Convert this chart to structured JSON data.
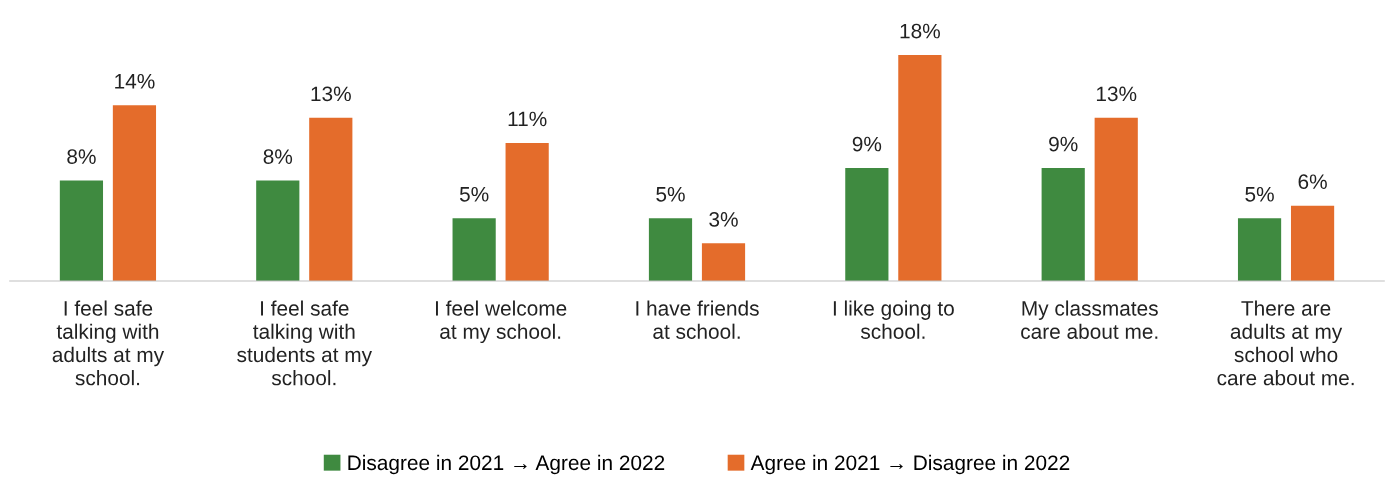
{
  "chart_data": {
    "type": "bar",
    "categories": [
      "I feel safe\ntalking with\nadults at my\nschool.",
      "I feel safe\ntalking with\nstudents at my\nschool.",
      "I feel welcome\nat my school.",
      "I have friends\nat school.",
      "I like going to\nschool.",
      "My classmates\ncare about me.",
      "There are\nadults at my\nschool who\ncare about me."
    ],
    "series": [
      {
        "name": "Disagree in 2021 → Agree in 2022",
        "color": "#3f8a40",
        "values": [
          8,
          8,
          5,
          5,
          9,
          9,
          5
        ],
        "value_labels": [
          "8%",
          "8%",
          "5%",
          "5%",
          "9%",
          "9%",
          "5%"
        ]
      },
      {
        "name": "Agree in 2021 → Disagree in 2022",
        "color": "#e46c2b",
        "values": [
          14,
          13,
          11,
          3,
          18,
          13,
          6
        ],
        "value_labels": [
          "14%",
          "13%",
          "11%",
          "3%",
          "18%",
          "13%",
          "6%"
        ]
      }
    ],
    "legend": "bottom",
    "grid": false
  }
}
